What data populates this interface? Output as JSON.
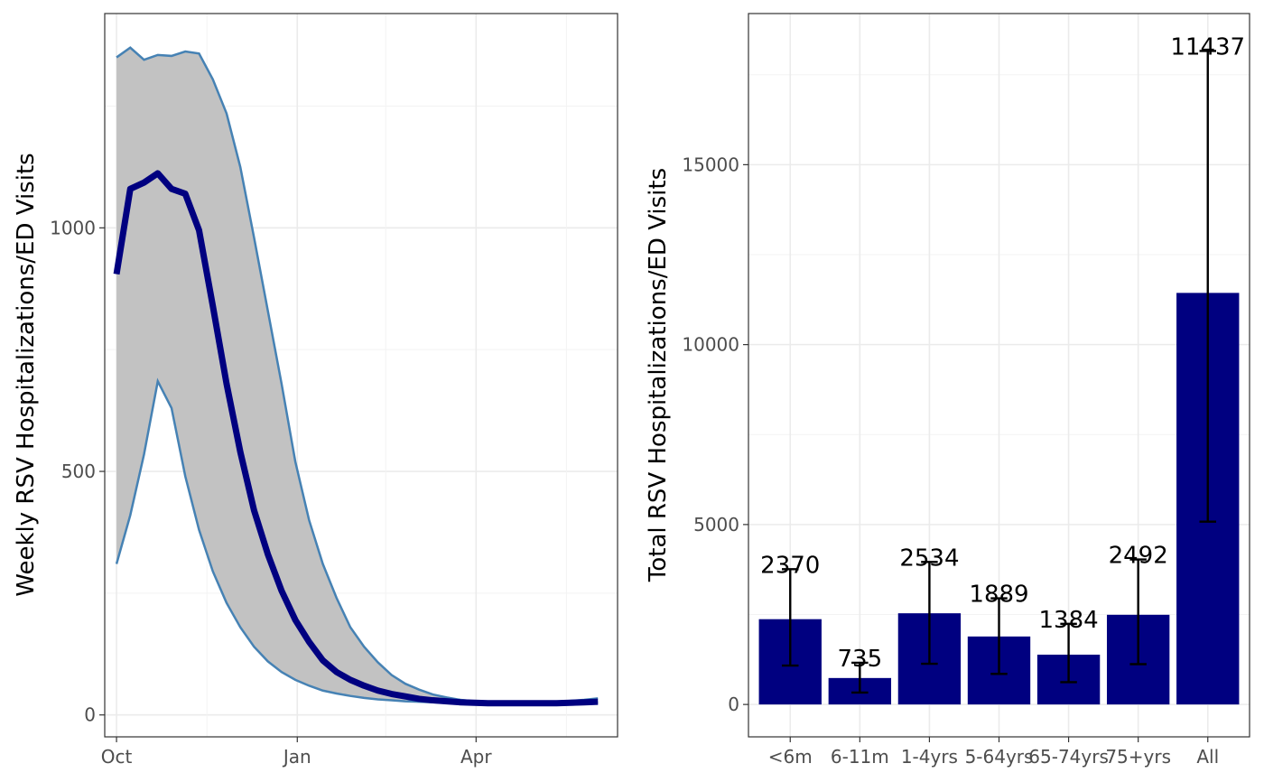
{
  "chart_data": [
    {
      "type": "line",
      "ylabel": "Weekly RSV Hospitalizations/ED Visits",
      "xlabel": "",
      "x_ticks": [
        "Oct",
        "Jan",
        "Apr"
      ],
      "y_ticks": [
        0,
        500,
        1000
      ],
      "xlim": [
        "2023-09-25",
        "2024-06-12"
      ],
      "ylim": [
        -45,
        1440
      ],
      "grid": true,
      "x": [
        "2023-10-01",
        "2023-10-08",
        "2023-10-15",
        "2023-10-22",
        "2023-10-29",
        "2023-11-05",
        "2023-11-12",
        "2023-11-19",
        "2023-11-26",
        "2023-12-03",
        "2023-12-10",
        "2023-12-17",
        "2023-12-24",
        "2023-12-31",
        "2024-01-07",
        "2024-01-14",
        "2024-01-21",
        "2024-01-28",
        "2024-02-04",
        "2024-02-11",
        "2024-02-18",
        "2024-02-25",
        "2024-03-03",
        "2024-03-10",
        "2024-03-17",
        "2024-03-24",
        "2024-03-31",
        "2024-04-07",
        "2024-04-14",
        "2024-04-21",
        "2024-04-28",
        "2024-05-05",
        "2024-05-12",
        "2024-05-19",
        "2024-05-26",
        "2024-06-02"
      ],
      "series": [
        {
          "role": "median",
          "color": "#000080",
          "values": [
            905,
            1080,
            1093,
            1112,
            1080,
            1070,
            995,
            840,
            680,
            540,
            420,
            330,
            255,
            195,
            150,
            112,
            88,
            72,
            60,
            50,
            43,
            38,
            33,
            30,
            28,
            26,
            25,
            24,
            24,
            24,
            24,
            24,
            24,
            25,
            26,
            27
          ]
        },
        {
          "role": "upper",
          "color": "#4682b4",
          "values": [
            1350,
            1370,
            1345,
            1355,
            1353,
            1362,
            1358,
            1305,
            1235,
            1125,
            980,
            830,
            680,
            520,
            400,
            310,
            240,
            180,
            140,
            108,
            82,
            64,
            52,
            42,
            36,
            31,
            28,
            26,
            25,
            25,
            25,
            26,
            27,
            29,
            31,
            34
          ]
        },
        {
          "role": "lower",
          "color": "#4682b4",
          "values": [
            310,
            410,
            535,
            685,
            630,
            490,
            380,
            295,
            230,
            180,
            140,
            110,
            88,
            72,
            60,
            50,
            44,
            39,
            35,
            32,
            30,
            28,
            27,
            26,
            25,
            24,
            24,
            23,
            23,
            23,
            23,
            23,
            24,
            24,
            25,
            26
          ]
        }
      ],
      "band_fill": "#c2c2c2"
    },
    {
      "type": "bar",
      "ylabel": "Total RSV Hospitalizations/ED Visits",
      "xlabel": "",
      "categories": [
        "<6m",
        "6-11m",
        "1-4yrs",
        "5-64yrs",
        "65-74yrs",
        "75+yrs",
        "All"
      ],
      "values": [
        2370,
        735,
        2534,
        1889,
        1384,
        2492,
        11437
      ],
      "error_low": [
        1080,
        330,
        1130,
        850,
        620,
        1120,
        5080
      ],
      "error_high": [
        3760,
        1160,
        3960,
        2950,
        2240,
        4030,
        18160
      ],
      "y_ticks": [
        0,
        5000,
        10000,
        15000
      ],
      "ylim": [
        -900,
        19200
      ],
      "grid": true,
      "bar_color": "#000080"
    }
  ]
}
